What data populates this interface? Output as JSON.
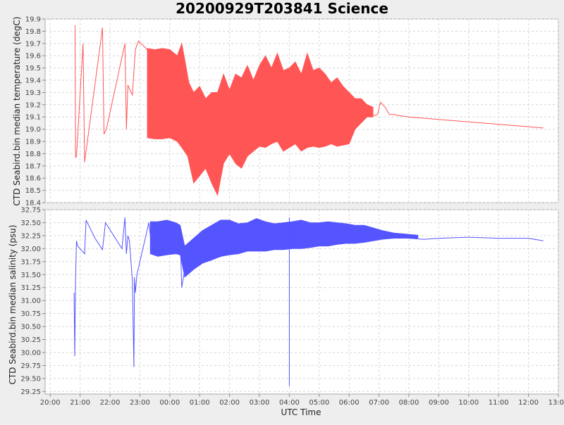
{
  "chart_data": [
    {
      "type": "line",
      "title": "20200929T203841 Science",
      "ylabel": "CTD Seabird.bin median temperature (degC)",
      "ylim": [
        18.4,
        19.9
      ],
      "yticks": [
        "18.4",
        "18.5",
        "18.6",
        "18.7",
        "18.8",
        "18.9",
        "19.0",
        "19.1",
        "19.2",
        "19.3",
        "19.4",
        "19.5",
        "19.6",
        "19.7",
        "19.8",
        "19.9"
      ],
      "series": [
        {
          "color": "#ff5555",
          "x": [
            20.83,
            20.85,
            20.88,
            21.1,
            21.15,
            21.75,
            21.8,
            21.88,
            22.5,
            22.55,
            22.6,
            22.65,
            22.75,
            22.85,
            22.95,
            23.25,
            23.35,
            24.25,
            24.4,
            24.7,
            25.0,
            25.3,
            25.6,
            25.9,
            26.2,
            26.5,
            26.8,
            27.1,
            27.4,
            27.7,
            28.0,
            28.3,
            28.6,
            28.9,
            29.2,
            29.5,
            29.8,
            30.1,
            30.4,
            30.7,
            30.95,
            31.05,
            31.2,
            31.35,
            31.5,
            31.7,
            32.0,
            33.0,
            34.0,
            35.0,
            36.0,
            36.5
          ],
          "y": [
            19.85,
            18.77,
            18.78,
            19.7,
            18.73,
            19.83,
            18.96,
            19.0,
            19.7,
            19.0,
            19.36,
            19.33,
            19.28,
            19.65,
            19.72,
            19.65,
            19.3,
            19.3,
            19.7,
            19.3,
            19.1,
            18.9,
            19.05,
            18.9,
            19.15,
            19.1,
            19.25,
            19.3,
            19.2,
            19.1,
            19.2,
            19.25,
            19.15,
            19.25,
            19.15,
            19.2,
            19.2,
            19.25,
            19.2,
            19.1,
            19.12,
            19.22,
            19.18,
            19.12,
            19.12,
            19.11,
            19.1,
            19.08,
            19.06,
            19.04,
            19.02,
            19.01
          ],
          "band_x": [
            23.25,
            23.5,
            23.75,
            24.0,
            24.25,
            24.4,
            24.6,
            24.8,
            25.0,
            25.2,
            25.4,
            25.6,
            25.8,
            26.0,
            26.2,
            26.4,
            26.6,
            26.8,
            27.0,
            27.2,
            27.4,
            27.6,
            27.8,
            28.0,
            28.2,
            28.4,
            28.6,
            28.8,
            29.0,
            29.2,
            29.4,
            29.6,
            29.8,
            30.0,
            30.2,
            30.4,
            30.6,
            30.8
          ],
          "band_low": [
            18.93,
            18.92,
            18.92,
            18.93,
            18.9,
            18.85,
            18.78,
            18.56,
            18.62,
            18.68,
            18.56,
            18.46,
            18.72,
            18.8,
            18.72,
            18.68,
            18.78,
            18.82,
            18.86,
            18.85,
            18.88,
            18.9,
            18.82,
            18.85,
            18.88,
            18.82,
            18.85,
            18.86,
            18.85,
            18.86,
            18.88,
            18.86,
            18.87,
            18.88,
            19.0,
            19.05,
            19.1,
            19.1
          ],
          "band_high": [
            19.66,
            19.65,
            19.66,
            19.65,
            19.6,
            19.7,
            19.4,
            19.3,
            19.35,
            19.25,
            19.3,
            19.3,
            19.45,
            19.32,
            19.45,
            19.42,
            19.52,
            19.4,
            19.52,
            19.6,
            19.5,
            19.62,
            19.48,
            19.5,
            19.55,
            19.45,
            19.62,
            19.48,
            19.5,
            19.45,
            19.38,
            19.42,
            19.35,
            19.3,
            19.25,
            19.25,
            19.2,
            19.18
          ]
        }
      ]
    },
    {
      "type": "line",
      "xlabel": "UTC Time",
      "ylabel": "CTD Seabird.bin median salinity (psu)",
      "ylim": [
        29.2,
        32.75
      ],
      "yticks": [
        "29.25",
        "29.50",
        "29.75",
        "30.00",
        "30.25",
        "30.50",
        "30.75",
        "31.00",
        "31.25",
        "31.50",
        "31.75",
        "32.00",
        "32.25",
        "32.50",
        "32.75"
      ],
      "xlim": [
        19.83,
        37.0
      ],
      "xticks": [
        "20:00",
        "21:00",
        "22:00",
        "23:00",
        "00:00",
        "01:00",
        "02:00",
        "03:00",
        "04:00",
        "05:00",
        "06:00",
        "07:00",
        "08:00",
        "09:00",
        "10:00",
        "11:00",
        "12:00",
        "13:00"
      ],
      "series": [
        {
          "color": "#5555ff",
          "x": [
            20.8,
            20.82,
            20.85,
            20.88,
            20.92,
            21.0,
            21.15,
            21.2,
            21.5,
            21.75,
            21.85,
            22.4,
            22.5,
            22.55,
            22.6,
            22.65,
            22.75,
            22.8,
            22.82,
            22.85,
            22.9,
            23.3,
            23.4,
            24.3,
            24.35,
            24.4,
            24.5,
            24.6,
            26.0,
            28.0,
            30.0,
            31.0,
            32.0,
            32.5,
            33.0,
            34.0,
            35.0,
            36.0,
            36.5
          ],
          "y": [
            31.15,
            29.93,
            31.4,
            32.15,
            32.05,
            32.0,
            31.9,
            32.55,
            32.2,
            31.98,
            32.5,
            32.0,
            32.6,
            31.9,
            32.25,
            32.15,
            31.38,
            29.72,
            31.45,
            31.15,
            31.5,
            32.5,
            32.0,
            31.9,
            32.25,
            31.25,
            31.6,
            31.65,
            31.9,
            32.2,
            32.3,
            32.25,
            32.2,
            32.18,
            32.2,
            32.22,
            32.2,
            32.2,
            32.15
          ],
          "band_x": [
            23.35,
            23.6,
            23.9,
            24.2,
            24.35,
            24.5,
            24.8,
            25.1,
            25.4,
            25.7,
            26.0,
            26.3,
            26.6,
            26.9,
            27.2,
            27.5,
            27.8,
            28.1,
            28.4,
            28.7,
            29.0,
            29.3,
            29.6,
            29.9,
            30.2,
            30.5,
            30.8,
            31.1,
            31.5,
            31.9,
            32.3
          ],
          "band_low": [
            31.9,
            31.85,
            31.88,
            31.9,
            31.88,
            31.45,
            31.6,
            31.72,
            31.78,
            31.85,
            31.88,
            31.9,
            31.95,
            31.95,
            31.95,
            31.98,
            31.98,
            32.0,
            32.0,
            32.02,
            32.05,
            32.05,
            32.08,
            32.1,
            32.1,
            32.12,
            32.15,
            32.18,
            32.2,
            32.2,
            32.2
          ],
          "band_high": [
            32.52,
            32.52,
            32.55,
            32.5,
            32.45,
            32.05,
            32.2,
            32.35,
            32.45,
            32.55,
            32.55,
            32.48,
            32.5,
            32.58,
            32.52,
            32.48,
            32.5,
            32.52,
            32.55,
            32.5,
            32.5,
            32.52,
            32.5,
            32.48,
            32.45,
            32.45,
            32.4,
            32.35,
            32.3,
            32.28,
            32.26
          ],
          "spikes": [
            [
              28.0,
              29.35
            ],
            [
              28.0,
              32.6
            ]
          ]
        }
      ]
    }
  ]
}
